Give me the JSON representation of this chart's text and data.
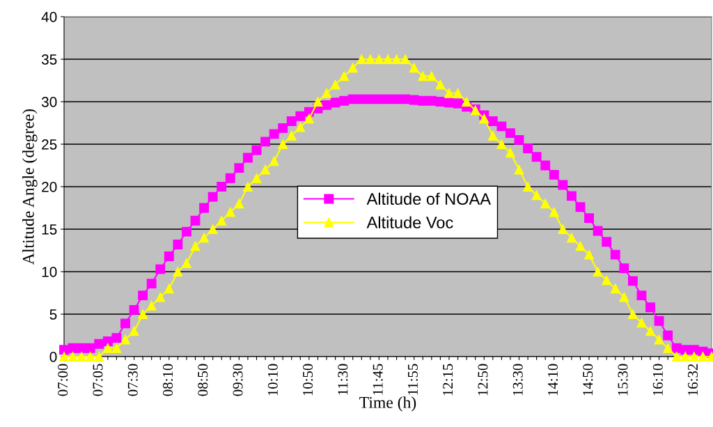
{
  "chart_data": {
    "type": "line",
    "xlabel": "Time (h)",
    "ylabel": "Altitude Angle (degree)",
    "categories": [
      "07:00",
      null,
      null,
      null,
      "07:05",
      null,
      null,
      null,
      "07:30",
      null,
      null,
      null,
      "08:10",
      null,
      null,
      null,
      "08:50",
      null,
      null,
      null,
      "09:30",
      null,
      null,
      null,
      "10:10",
      null,
      null,
      null,
      "10:50",
      null,
      null,
      null,
      "11:30",
      null,
      null,
      null,
      "11:45",
      null,
      null,
      null,
      "11:55",
      null,
      null,
      null,
      "12:15",
      null,
      null,
      null,
      "12:50",
      null,
      null,
      null,
      "13:30",
      null,
      null,
      null,
      "14:10",
      null,
      null,
      null,
      "14:50",
      null,
      null,
      null,
      "15:30",
      null,
      null,
      null,
      "16:10",
      null,
      null,
      null,
      "16:32",
      null,
      null
    ],
    "series": [
      {
        "name": "Altitude of NOAA",
        "color": "#ff00ff",
        "marker": "square",
        "values": [
          0.8,
          1.0,
          1.0,
          1.0,
          1.5,
          1.8,
          2.2,
          3.9,
          5.5,
          7.2,
          8.6,
          10.3,
          11.8,
          13.2,
          14.7,
          16.0,
          17.5,
          18.8,
          20.0,
          21.0,
          22.2,
          23.4,
          24.3,
          25.3,
          26.2,
          26.9,
          27.7,
          28.3,
          28.8,
          29.2,
          29.6,
          29.9,
          30.1,
          30.3,
          30.3,
          30.3,
          30.3,
          30.3,
          30.3,
          30.3,
          30.2,
          30.1,
          30.1,
          30.0,
          29.9,
          29.8,
          29.4,
          29.1,
          28.4,
          27.7,
          27.1,
          26.3,
          25.5,
          24.5,
          23.5,
          22.5,
          21.4,
          20.2,
          18.9,
          17.6,
          16.3,
          14.8,
          13.5,
          12.0,
          10.4,
          8.9,
          7.2,
          5.8,
          4.2,
          2.5,
          1.0,
          0.8,
          0.8,
          0.6,
          0.4
        ]
      },
      {
        "name": "Altitude Voc",
        "color": "#ffff00",
        "marker": "triangle",
        "values": [
          0,
          0,
          0,
          0,
          0,
          1,
          1,
          2,
          3,
          5,
          6,
          7,
          8,
          10,
          11,
          13,
          14,
          15,
          16,
          17,
          18,
          20,
          21,
          22,
          23,
          25,
          26,
          27,
          28,
          30,
          31,
          32,
          33,
          34,
          35,
          35,
          35,
          35,
          35,
          35,
          34,
          33,
          33,
          32,
          31,
          31,
          30,
          29,
          28,
          26,
          25,
          24,
          22,
          20,
          19,
          18,
          17,
          15,
          14,
          13,
          12,
          10,
          9,
          8,
          7,
          5,
          4,
          3,
          2,
          1,
          0,
          0,
          0,
          0,
          0
        ]
      }
    ],
    "ylim": [
      0,
      40
    ],
    "yticks": [
      0,
      5,
      10,
      15,
      20,
      25,
      30,
      35,
      40
    ],
    "grid": "y",
    "legend": "center",
    "line_style": "solid"
  }
}
